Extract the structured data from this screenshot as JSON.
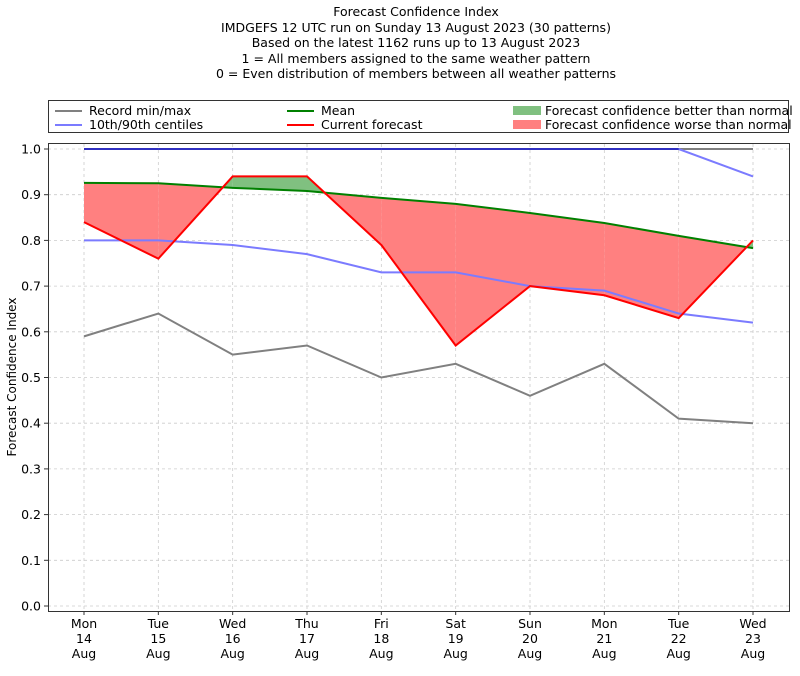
{
  "chart_data": {
    "type": "line",
    "title": "Forecast Confidence Index",
    "subtitle_lines": [
      "IMDGEFS 12 UTC run on Sunday 13 August 2023 (30 patterns)",
      "Based on the latest 1162 runs up to 13 August 2023",
      "1 = All members assigned to the same weather pattern",
      "0 = Even distribution of members between all weather patterns"
    ],
    "xlabel": "",
    "ylabel": "Forecast Confidence Index",
    "ylim": [
      0.0,
      1.0
    ],
    "yticks": [
      "0.0",
      "0.1",
      "0.2",
      "0.3",
      "0.4",
      "0.5",
      "0.6",
      "0.7",
      "0.8",
      "0.9",
      "1.0"
    ],
    "categories": [
      [
        "Mon",
        "14",
        "Aug"
      ],
      [
        "Tue",
        "15",
        "Aug"
      ],
      [
        "Wed",
        "16",
        "Aug"
      ],
      [
        "Thu",
        "17",
        "Aug"
      ],
      [
        "Fri",
        "18",
        "Aug"
      ],
      [
        "Sat",
        "19",
        "Aug"
      ],
      [
        "Sun",
        "20",
        "Aug"
      ],
      [
        "Mon",
        "21",
        "Aug"
      ],
      [
        "Tue",
        "22",
        "Aug"
      ],
      [
        "Wed",
        "23",
        "Aug"
      ]
    ],
    "grid": true,
    "legend_position": "top",
    "series": [
      {
        "name": "Record max",
        "legend": "Record min/max",
        "color": "#808080",
        "values": [
          1.0,
          1.0,
          1.0,
          1.0,
          1.0,
          1.0,
          1.0,
          1.0,
          1.0,
          1.0
        ]
      },
      {
        "name": "Record min",
        "color": "#808080",
        "values": [
          0.59,
          0.64,
          0.55,
          0.57,
          0.5,
          0.53,
          0.46,
          0.53,
          0.41,
          0.4
        ]
      },
      {
        "name": "90th centile",
        "legend": "10th/90th centiles",
        "color": "#7b7bff",
        "values": [
          1.0,
          1.0,
          1.0,
          1.0,
          1.0,
          1.0,
          1.0,
          1.0,
          1.0,
          0.94
        ]
      },
      {
        "name": "10th centile",
        "color": "#7b7bff",
        "values": [
          0.8,
          0.8,
          0.79,
          0.77,
          0.73,
          0.73,
          0.7,
          0.69,
          0.64,
          0.62
        ]
      },
      {
        "name": "Mean",
        "legend": "Mean",
        "color": "#008000",
        "values": [
          0.926,
          0.925,
          0.915,
          0.908,
          0.893,
          0.88,
          0.86,
          0.838,
          0.81,
          0.783
        ]
      },
      {
        "name": "Current forecast",
        "legend": "Current forecast",
        "color": "#ff0000",
        "values": [
          0.84,
          0.76,
          0.94,
          0.94,
          0.79,
          0.57,
          0.7,
          0.68,
          0.63,
          0.8
        ]
      }
    ],
    "fills": [
      {
        "name": "Forecast confidence better than normal",
        "color": "#80c080",
        "condition": "current > mean"
      },
      {
        "name": "Forecast confidence worse than normal",
        "color": "#ff8080",
        "condition": "current < mean"
      }
    ]
  },
  "legend": {
    "record": "Record min/max",
    "centiles": "10th/90th centiles",
    "mean": "Mean",
    "current": "Current forecast",
    "better": "Forecast confidence better than normal",
    "worse": "Forecast confidence worse than normal"
  }
}
